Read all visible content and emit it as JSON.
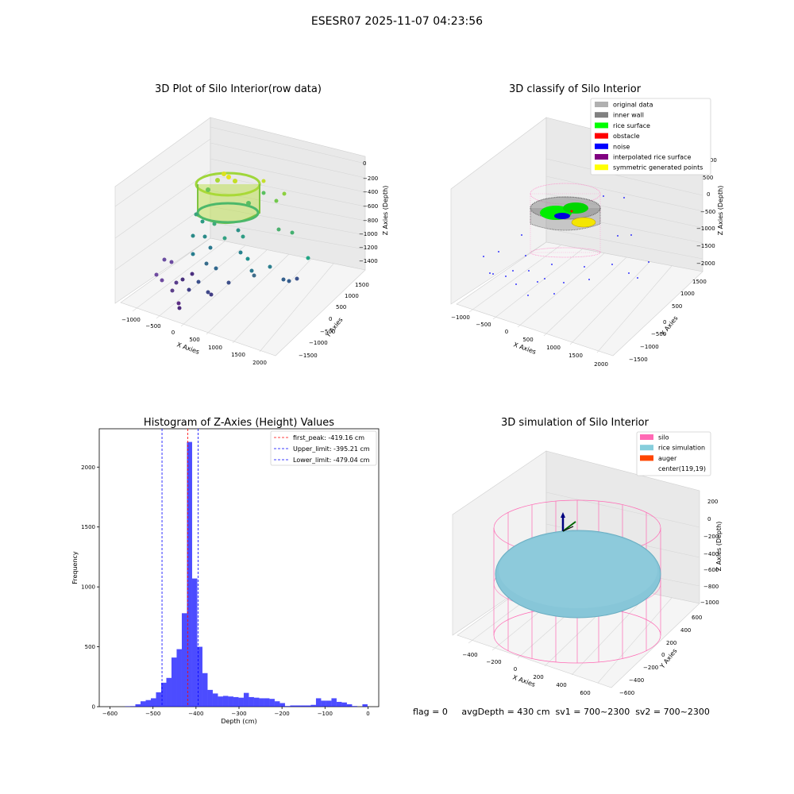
{
  "figure": {
    "suptitle": "ESESR07 2025-11-07 04:23:56"
  },
  "plot1": {
    "title": "3D Plot of Silo Interior(row data)",
    "xlabel": "X Axies",
    "ylabel": "Y Axies",
    "zlabel": "Z Axies (Depth)",
    "xticks": [
      "−1000",
      "−500",
      "0",
      "500",
      "1000",
      "1500",
      "2000"
    ],
    "yticks": [
      "−1500",
      "−1000",
      "−500",
      "0",
      "500",
      "1000",
      "1500"
    ],
    "zticks": [
      "0",
      "−200",
      "−400",
      "−600",
      "−800",
      "−1000",
      "−1200",
      "−1400"
    ]
  },
  "plot2": {
    "title": "3D classify of Silo Interior",
    "xlabel": "X Axies",
    "ylabel": "Y Axies",
    "zlabel": "Z Axies (Depth)",
    "xticks": [
      "−1000",
      "−500",
      "0",
      "500",
      "1000",
      "1500",
      "2000"
    ],
    "yticks": [
      "−1500",
      "−1000",
      "−500",
      "0",
      "500",
      "1000",
      "1500"
    ],
    "zticks": [
      "1000",
      "500",
      "0",
      "−500",
      "−1000",
      "−1500",
      "−2000"
    ],
    "legend": [
      {
        "label": "original data",
        "color": "#b0b0b0"
      },
      {
        "label": "inner wall",
        "color": "#808080"
      },
      {
        "label": "rice surface",
        "color": "#00ff00"
      },
      {
        "label": "obstacle",
        "color": "#ff0000"
      },
      {
        "label": "noise",
        "color": "#0000ff"
      },
      {
        "label": "interpolated rice surface",
        "color": "#800080"
      },
      {
        "label": "symmetric generated points",
        "color": "#ffff00"
      }
    ]
  },
  "plot4": {
    "title": "3D simulation of Silo Interior",
    "xlabel": "X Axies",
    "ylabel": "Y Axies",
    "zlabel": "Z Axies (Depth)",
    "xticks": [
      "−400",
      "−200",
      "0",
      "200",
      "400",
      "600"
    ],
    "yticks": [
      "600",
      "400",
      "200",
      "0",
      "−200",
      "−400",
      "−600"
    ],
    "zticks": [
      "200",
      "0",
      "−200",
      "−400",
      "−600",
      "−800",
      "−1000"
    ],
    "legend": [
      {
        "label": "silo",
        "color": "#ff69b4"
      },
      {
        "label": "rice simulation",
        "color": "#87cedc"
      },
      {
        "label": "auger",
        "color": "#ff4500"
      },
      {
        "label": "center(119,19)",
        "color": ""
      }
    ],
    "status": "flag = 0     avgDepth = 430 cm  sv1 = 700~2300  sv2 = 700~2300"
  },
  "chart_data": {
    "type": "bar",
    "title": "Histogram of Z-Axies (Height) Values",
    "xlabel": "Depth (cm)",
    "ylabel": "Frequency",
    "xlim": [
      -625,
      25
    ],
    "ylim": [
      0,
      2320
    ],
    "xticks": [
      -600,
      -500,
      -400,
      -300,
      -200,
      -100,
      0
    ],
    "yticks": [
      0,
      500,
      1000,
      1500,
      2000
    ],
    "bar_color": "#0000ff",
    "bins": [
      {
        "x0": -565,
        "x1": -553,
        "v": 3
      },
      {
        "x0": -553,
        "x1": -541,
        "v": 4
      },
      {
        "x0": -541,
        "x1": -529,
        "v": 20
      },
      {
        "x0": -529,
        "x1": -517,
        "v": 45
      },
      {
        "x0": -517,
        "x1": -505,
        "v": 55
      },
      {
        "x0": -505,
        "x1": -493,
        "v": 70
      },
      {
        "x0": -493,
        "x1": -481,
        "v": 120
      },
      {
        "x0": -481,
        "x1": -469,
        "v": 200
      },
      {
        "x0": -469,
        "x1": -457,
        "v": 240
      },
      {
        "x0": -457,
        "x1": -445,
        "v": 410
      },
      {
        "x0": -445,
        "x1": -433,
        "v": 480
      },
      {
        "x0": -433,
        "x1": -421,
        "v": 780
      },
      {
        "x0": -421,
        "x1": -409,
        "v": 2210
      },
      {
        "x0": -409,
        "x1": -397,
        "v": 1070
      },
      {
        "x0": -397,
        "x1": -385,
        "v": 500
      },
      {
        "x0": -385,
        "x1": -373,
        "v": 280
      },
      {
        "x0": -373,
        "x1": -361,
        "v": 140
      },
      {
        "x0": -361,
        "x1": -349,
        "v": 110
      },
      {
        "x0": -349,
        "x1": -337,
        "v": 85
      },
      {
        "x0": -337,
        "x1": -325,
        "v": 90
      },
      {
        "x0": -325,
        "x1": -313,
        "v": 85
      },
      {
        "x0": -313,
        "x1": -301,
        "v": 80
      },
      {
        "x0": -301,
        "x1": -289,
        "v": 75
      },
      {
        "x0": -289,
        "x1": -277,
        "v": 115
      },
      {
        "x0": -277,
        "x1": -265,
        "v": 80
      },
      {
        "x0": -265,
        "x1": -253,
        "v": 75
      },
      {
        "x0": -253,
        "x1": -241,
        "v": 70
      },
      {
        "x0": -241,
        "x1": -229,
        "v": 70
      },
      {
        "x0": -229,
        "x1": -217,
        "v": 65
      },
      {
        "x0": -217,
        "x1": -205,
        "v": 45
      },
      {
        "x0": -205,
        "x1": -193,
        "v": 30
      },
      {
        "x0": -193,
        "x1": -181,
        "v": 5
      },
      {
        "x0": -181,
        "x1": -169,
        "v": 10
      },
      {
        "x0": -169,
        "x1": -157,
        "v": 10
      },
      {
        "x0": -157,
        "x1": -145,
        "v": 10
      },
      {
        "x0": -145,
        "x1": -133,
        "v": 10
      },
      {
        "x0": -133,
        "x1": -121,
        "v": 15
      },
      {
        "x0": -121,
        "x1": -109,
        "v": 70
      },
      {
        "x0": -109,
        "x1": -97,
        "v": 50
      },
      {
        "x0": -97,
        "x1": -85,
        "v": 50
      },
      {
        "x0": -85,
        "x1": -73,
        "v": 70
      },
      {
        "x0": -73,
        "x1": -61,
        "v": 40
      },
      {
        "x0": -61,
        "x1": -49,
        "v": 35
      },
      {
        "x0": -49,
        "x1": -37,
        "v": 20
      },
      {
        "x0": -37,
        "x1": -25,
        "v": 5
      },
      {
        "x0": -13,
        "x1": -1,
        "v": 20
      }
    ],
    "lines": [
      {
        "label": "first_peak: -419.16 cm",
        "x": -419.16,
        "color": "#ff0000"
      },
      {
        "label": "Upper_limit: -395.21 cm",
        "x": -395.21,
        "color": "#0000ff"
      },
      {
        "label": "Lower_limit: -479.04 cm",
        "x": -479.04,
        "color": "#0000ff"
      }
    ]
  }
}
